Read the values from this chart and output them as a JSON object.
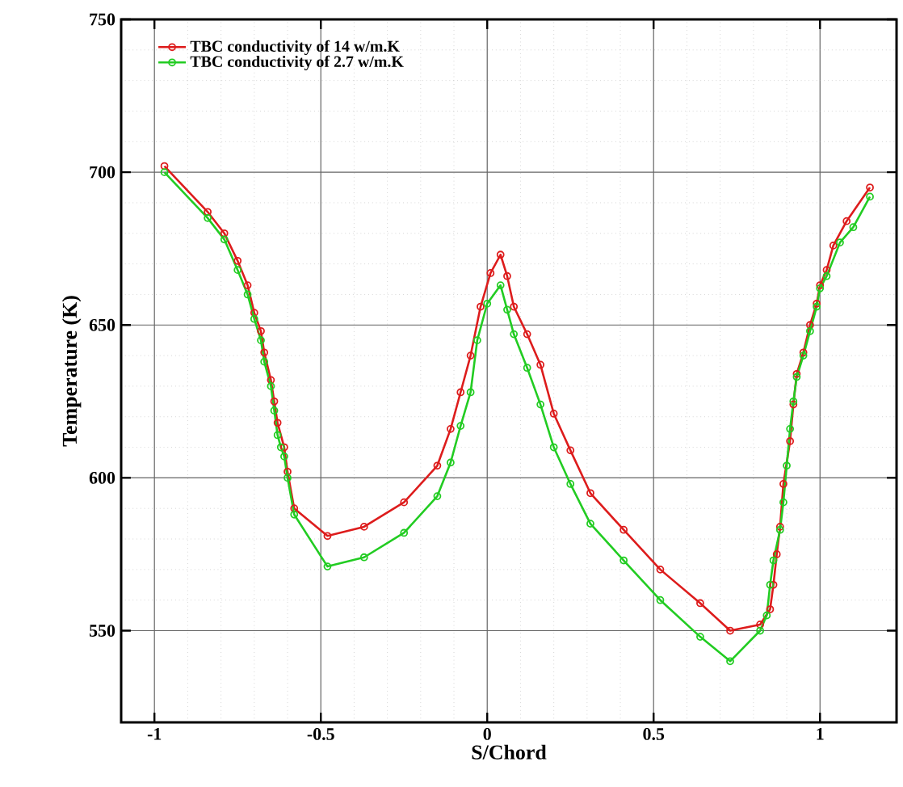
{
  "chart_data": {
    "type": "line",
    "xlabel": "S/Chord",
    "ylabel": "Temperature (K)",
    "xlim": [
      -1.1,
      1.23
    ],
    "ylim": [
      520,
      750
    ],
    "xticks": [
      -1,
      -0.5,
      0,
      0.5,
      1
    ],
    "yticks": [
      550,
      600,
      650,
      700,
      750
    ],
    "grid": true,
    "legend": "top left",
    "marker": "circle",
    "line_style": "solid",
    "series": [
      {
        "name": "TBC conductivity of 14 w/m.K",
        "color": "#dd1c1c",
        "x": [
          -0.97,
          -0.84,
          -0.79,
          -0.75,
          -0.72,
          -0.7,
          -0.68,
          -0.67,
          -0.65,
          -0.64,
          -0.63,
          -0.61,
          -0.6,
          -0.58,
          -0.48,
          -0.37,
          -0.25,
          -0.15,
          -0.11,
          -0.08,
          -0.05,
          -0.02,
          0.01,
          0.04,
          0.06,
          0.08,
          0.12,
          0.16,
          0.2,
          0.25,
          0.31,
          0.41,
          0.52,
          0.64,
          0.73,
          0.82,
          0.85,
          0.86,
          0.87,
          0.88,
          0.89,
          0.91,
          0.92,
          0.93,
          0.95,
          0.97,
          0.99,
          1.0,
          1.02,
          1.04,
          1.08,
          1.15
        ],
        "values": [
          702,
          687,
          680,
          671,
          663,
          654,
          648,
          641,
          632,
          625,
          618,
          610,
          602,
          590,
          581,
          584,
          592,
          604,
          616,
          628,
          640,
          656,
          667,
          673,
          666,
          656,
          647,
          637,
          621,
          609,
          595,
          583,
          570,
          559,
          550,
          552,
          557,
          565,
          575,
          584,
          598,
          612,
          624,
          634,
          641,
          650,
          657,
          663,
          668,
          676,
          684,
          695
        ]
      },
      {
        "name": "TBC conductivity of 2.7 w/m.K",
        "color": "#22cc22",
        "x": [
          -0.97,
          -0.84,
          -0.79,
          -0.75,
          -0.72,
          -0.7,
          -0.68,
          -0.67,
          -0.65,
          -0.64,
          -0.63,
          -0.62,
          -0.61,
          -0.6,
          -0.58,
          -0.48,
          -0.37,
          -0.25,
          -0.15,
          -0.11,
          -0.08,
          -0.05,
          -0.03,
          0.0,
          0.04,
          0.06,
          0.08,
          0.12,
          0.16,
          0.2,
          0.25,
          0.31,
          0.41,
          0.52,
          0.64,
          0.73,
          0.82,
          0.84,
          0.85,
          0.86,
          0.88,
          0.89,
          0.9,
          0.91,
          0.92,
          0.93,
          0.95,
          0.97,
          0.99,
          1.0,
          1.02,
          1.06,
          1.1,
          1.15
        ],
        "values": [
          700,
          685,
          678,
          668,
          660,
          652,
          645,
          638,
          630,
          622,
          614,
          610,
          607,
          600,
          588,
          571,
          574,
          582,
          594,
          605,
          617,
          628,
          645,
          657,
          663,
          655,
          647,
          636,
          624,
          610,
          598,
          585,
          573,
          560,
          548,
          540,
          550,
          555,
          565,
          573,
          583,
          592,
          604,
          616,
          625,
          633,
          640,
          648,
          656,
          662,
          666,
          677,
          682,
          692
        ]
      }
    ]
  }
}
